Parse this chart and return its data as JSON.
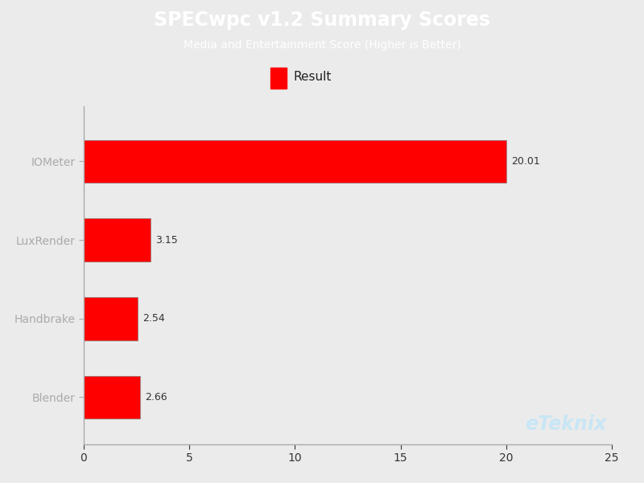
{
  "title": "SPECwpc v1.2 Summary Scores",
  "subtitle": "Media and Entertainment Score (Higher is Better)",
  "categories": [
    "IOMeter",
    "LuxRender",
    "Handbrake",
    "Blender"
  ],
  "values": [
    20.01,
    3.15,
    2.54,
    2.66
  ],
  "bar_color": "#ff0000",
  "bar_edge_color": "#888888",
  "background_color": "#ebebeb",
  "header_color": "#29abe2",
  "title_color": "#ffffff",
  "title_fontsize": 17,
  "subtitle_fontsize": 10,
  "legend_label": "Result",
  "xlim": [
    0,
    25
  ],
  "xticks": [
    0,
    5,
    10,
    15,
    20,
    25
  ],
  "watermark": "eTeknix",
  "watermark_color": "#c8e6f5",
  "value_label_fontsize": 9
}
